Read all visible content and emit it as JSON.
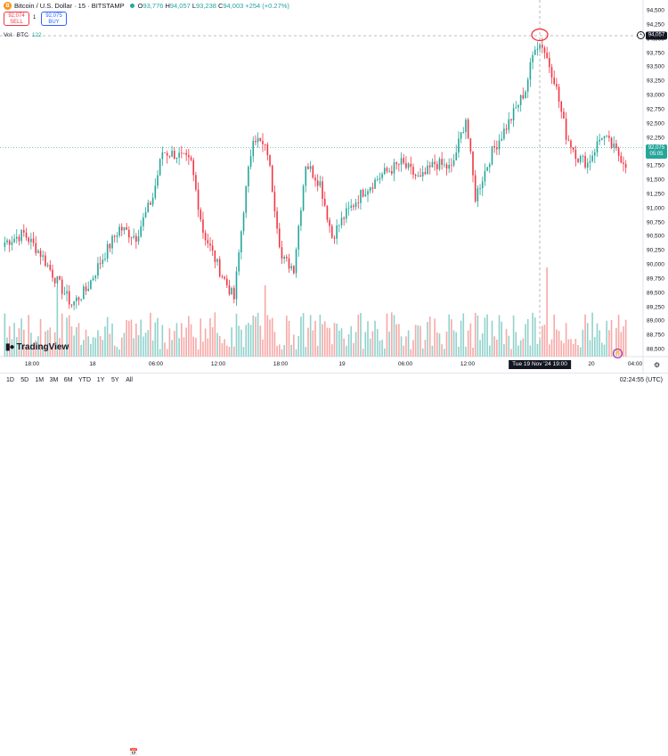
{
  "header": {
    "symbol": "Bitcoin / U.S. Dollar · 15 · BITSTAMP",
    "logo_letter": "B",
    "o_label": "O",
    "o": "93,776",
    "h_label": "H",
    "h": "94,057",
    "l_label": "L",
    "l": "93,238",
    "c_label": "C",
    "c": "94,003",
    "change": "+254 (+0.27%)"
  },
  "quotes": {
    "sell_price": "92,074",
    "sell_label": "SELL",
    "buy_price": "92,075",
    "buy_label": "BUY",
    "spread": "1"
  },
  "volume_legend": {
    "label": "Vol · BTC",
    "value": "122"
  },
  "price_tags": {
    "crosshair": "94,057",
    "last": "92,075",
    "countdown": "05:05"
  },
  "crosshair_label": "Tue 19 Nov '24   19:00",
  "brand": "TradingView",
  "bottom_bar": {
    "timeframes": [
      "1D",
      "5D",
      "1M",
      "3M",
      "6M",
      "YTD",
      "1Y",
      "5Y",
      "All"
    ],
    "clock": "02:24:55 (UTC)"
  },
  "colors": {
    "up": "#26a69a",
    "down": "#f23645",
    "up_vol": "#92d2cc",
    "down_vol": "#f7a9a7",
    "last_price_line": "#26a69a",
    "highlight": "#f23645"
  },
  "chart_data": {
    "type": "candlestick",
    "title": "Bitcoin / U.S. Dollar · 15 · BITSTAMP",
    "ylim": [
      88500,
      94500
    ],
    "y_ticks": [
      "94,500",
      "94,250",
      "94,000",
      "93,750",
      "93,500",
      "93,250",
      "93,000",
      "92,750",
      "92,500",
      "92,250",
      "92,000",
      "91,750",
      "91,500",
      "91,250",
      "91,000",
      "90,750",
      "90,500",
      "90,250",
      "90,000",
      "89,750",
      "89,500",
      "89,250",
      "89,000",
      "88,750",
      "88,500"
    ],
    "x_ticks": [
      "18:00",
      "18",
      "06:00",
      "12:00",
      "18:00",
      "19",
      "06:00",
      "12:00",
      "18:00",
      "20",
      "04:00"
    ],
    "close_path": [
      {
        "i": 0,
        "v": 90400
      },
      {
        "i": 8,
        "v": 90550
      },
      {
        "i": 15,
        "v": 90200
      },
      {
        "i": 22,
        "v": 89700
      },
      {
        "i": 28,
        "v": 89300
      },
      {
        "i": 34,
        "v": 89550
      },
      {
        "i": 40,
        "v": 90050
      },
      {
        "i": 48,
        "v": 90650
      },
      {
        "i": 55,
        "v": 90500
      },
      {
        "i": 62,
        "v": 91200
      },
      {
        "i": 66,
        "v": 92000
      },
      {
        "i": 72,
        "v": 91950
      },
      {
        "i": 78,
        "v": 91800
      },
      {
        "i": 83,
        "v": 90600
      },
      {
        "i": 90,
        "v": 89900
      },
      {
        "i": 96,
        "v": 89400
      },
      {
        "i": 100,
        "v": 91000
      },
      {
        "i": 104,
        "v": 92300
      },
      {
        "i": 110,
        "v": 92000
      },
      {
        "i": 116,
        "v": 90100
      },
      {
        "i": 121,
        "v": 89950
      },
      {
        "i": 126,
        "v": 91800
      },
      {
        "i": 132,
        "v": 91450
      },
      {
        "i": 137,
        "v": 90500
      },
      {
        "i": 142,
        "v": 90850
      },
      {
        "i": 150,
        "v": 91300
      },
      {
        "i": 158,
        "v": 91600
      },
      {
        "i": 166,
        "v": 91800
      },
      {
        "i": 174,
        "v": 91500
      },
      {
        "i": 180,
        "v": 91800
      },
      {
        "i": 187,
        "v": 91700
      },
      {
        "i": 193,
        "v": 92600
      },
      {
        "i": 197,
        "v": 91200
      },
      {
        "i": 204,
        "v": 92000
      },
      {
        "i": 212,
        "v": 92600
      },
      {
        "i": 218,
        "v": 93100
      },
      {
        "i": 222,
        "v": 93900
      },
      {
        "i": 225,
        "v": 93900
      },
      {
        "i": 230,
        "v": 93300
      },
      {
        "i": 235,
        "v": 92300
      },
      {
        "i": 240,
        "v": 91900
      },
      {
        "i": 244,
        "v": 91800
      },
      {
        "i": 250,
        "v": 92300
      },
      {
        "i": 256,
        "v": 92000
      },
      {
        "i": 260,
        "v": 91800
      }
    ],
    "crosshair_price": 94057,
    "last_price": 92075
  }
}
